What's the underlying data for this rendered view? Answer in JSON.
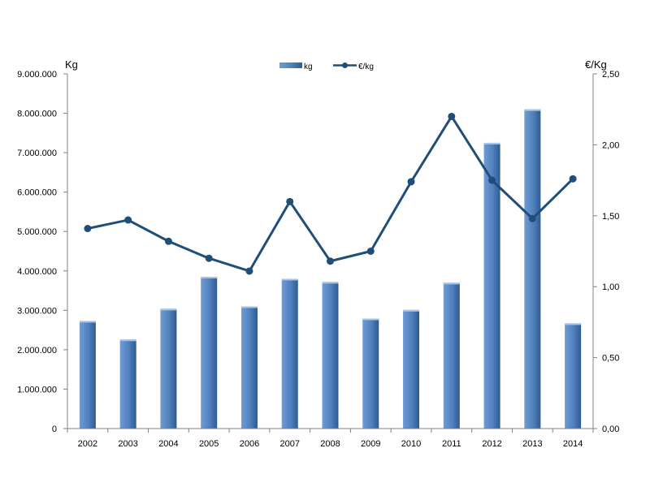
{
  "chart_data": {
    "type": "bar",
    "categories": [
      "2002",
      "2003",
      "2004",
      "2005",
      "2006",
      "2007",
      "2008",
      "2009",
      "2010",
      "2011",
      "2012",
      "2013",
      "2014"
    ],
    "series": [
      {
        "name": "kg",
        "type": "bar",
        "axis": "left",
        "values": [
          2730000,
          2260000,
          3040000,
          3850000,
          3100000,
          3800000,
          3720000,
          2790000,
          3010000,
          3700000,
          7250000,
          8100000,
          2670000
        ]
      },
      {
        "name": "€/kg",
        "type": "line",
        "axis": "right",
        "values": [
          1.41,
          1.47,
          1.32,
          1.2,
          1.11,
          1.6,
          1.18,
          1.25,
          1.74,
          2.2,
          1.75,
          1.48,
          1.76
        ]
      }
    ],
    "y_left": {
      "label": "Kg",
      "ylim": [
        0,
        9000000
      ],
      "ticks": [
        "0",
        "1.000.000",
        "2.000.000",
        "3.000.000",
        "4.000.000",
        "5.000.000",
        "6.000.000",
        "7.000.000",
        "8.000.000",
        "9.000.000"
      ]
    },
    "y_right": {
      "label": "€/Kg",
      "ylim": [
        0,
        2.5
      ],
      "ticks": [
        "0,00",
        "0,50",
        "1,00",
        "1,50",
        "2,00",
        "2,50"
      ]
    },
    "grid": false,
    "legend_position": "top-center",
    "colors": {
      "bar": "#4f81bd",
      "bar_dark": "#2f5a90",
      "line": "#1f4e79",
      "axis": "#808080"
    }
  }
}
